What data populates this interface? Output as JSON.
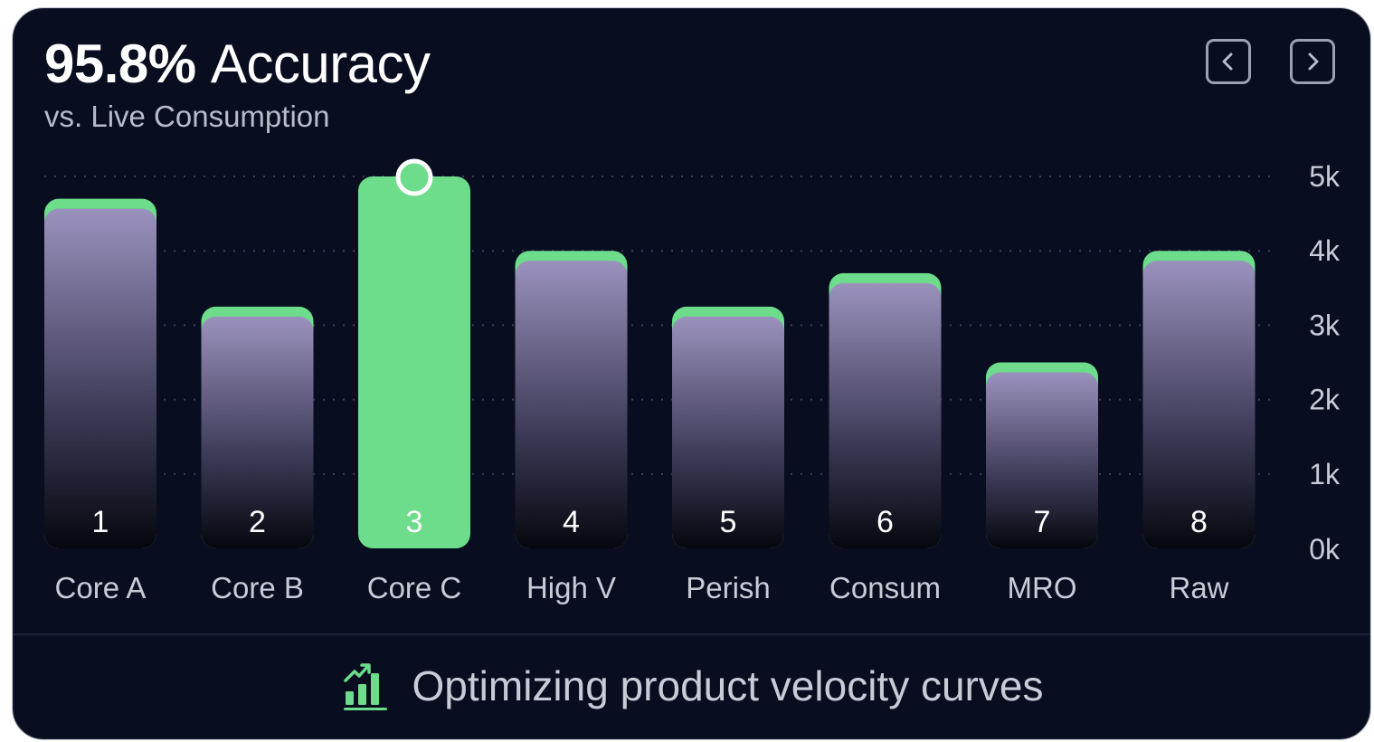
{
  "header": {
    "title_value": "95.8%",
    "title_word": "Accuracy",
    "subtitle": "vs. Live Consumption"
  },
  "nav": {
    "prev_icon": "chevron-left-icon",
    "next_icon": "chevron-right-icon"
  },
  "footer": {
    "icon": "bar-chart-trend-icon",
    "text": "Optimizing product velocity curves"
  },
  "colors": {
    "card_bg": "#080d1f",
    "accent_green": "#6ddc8b",
    "bar_top": "#9a92bd",
    "bar_bottom": "#05070e",
    "label_text": "#c8ccd7"
  },
  "chart_data": {
    "type": "bar",
    "categories": [
      "Core A",
      "Core B",
      "Core C",
      "High V",
      "Perish",
      "Consum",
      "MRO",
      "Raw"
    ],
    "bar_numbers": [
      "1",
      "2",
      "3",
      "4",
      "5",
      "6",
      "7",
      "8"
    ],
    "values": [
      4.7,
      3.25,
      5.0,
      4.0,
      3.25,
      3.7,
      2.5,
      4.0
    ],
    "highlighted_index": 2,
    "y_ticks": [
      "0k",
      "1k",
      "2k",
      "3k",
      "4k",
      "5k"
    ],
    "ylim": [
      0,
      5
    ],
    "grid": true,
    "y_axis_position": "right"
  }
}
